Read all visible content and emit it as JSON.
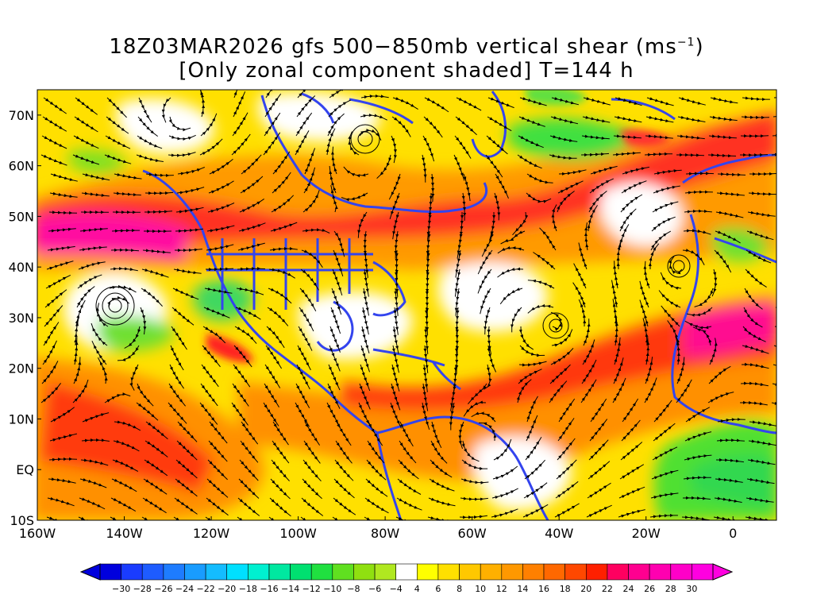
{
  "title": {
    "line1_prefix": "18Z03MAR2026 gfs 500−850mb vertical shear (ms",
    "line1_sup": "−1",
    "line1_suffix": ")",
    "line2": "[Only zonal component shaded] T=144 h"
  },
  "map": {
    "lat_labels": [
      "70N",
      "60N",
      "50N",
      "40N",
      "30N",
      "20N",
      "10N",
      "EQ",
      "10S"
    ],
    "lon_labels": [
      "160W",
      "140W",
      "120W",
      "100W",
      "80W",
      "60W",
      "40W",
      "20W",
      "0"
    ],
    "lat_values": [
      70,
      60,
      50,
      40,
      30,
      20,
      10,
      0,
      -10
    ],
    "lon_values": [
      -160,
      -140,
      -120,
      -100,
      -80,
      -60,
      -40,
      -20,
      0
    ],
    "lat_range": [
      -10,
      75
    ],
    "lon_range": [
      -160,
      10
    ],
    "coastline_color": "#3344ee",
    "streamline_color": "#000000"
  },
  "colorbar": {
    "labels": [
      "−30",
      "−28",
      "−26",
      "−24",
      "−22",
      "−20",
      "−18",
      "−16",
      "−14",
      "−12",
      "−10",
      "−8",
      "−6",
      "−4",
      "4",
      "6",
      "8",
      "10",
      "12",
      "14",
      "16",
      "18",
      "20",
      "22",
      "24",
      "26",
      "28",
      "30"
    ],
    "colors": [
      "#0000dd",
      "#1a3cff",
      "#1e5cff",
      "#1e7cff",
      "#199cff",
      "#14bcff",
      "#00e0ff",
      "#00f0d0",
      "#00e8a0",
      "#00e070",
      "#20e040",
      "#60e020",
      "#90e010",
      "#b0e820",
      "#ffffff",
      "#ffff00",
      "#ffe000",
      "#ffc800",
      "#ffb000",
      "#ff9800",
      "#ff8000",
      "#ff6800",
      "#ff4800",
      "#ff2000",
      "#ff0060",
      "#ff0090",
      "#ff00b0",
      "#ff00c8",
      "#ff00e0"
    ]
  }
}
